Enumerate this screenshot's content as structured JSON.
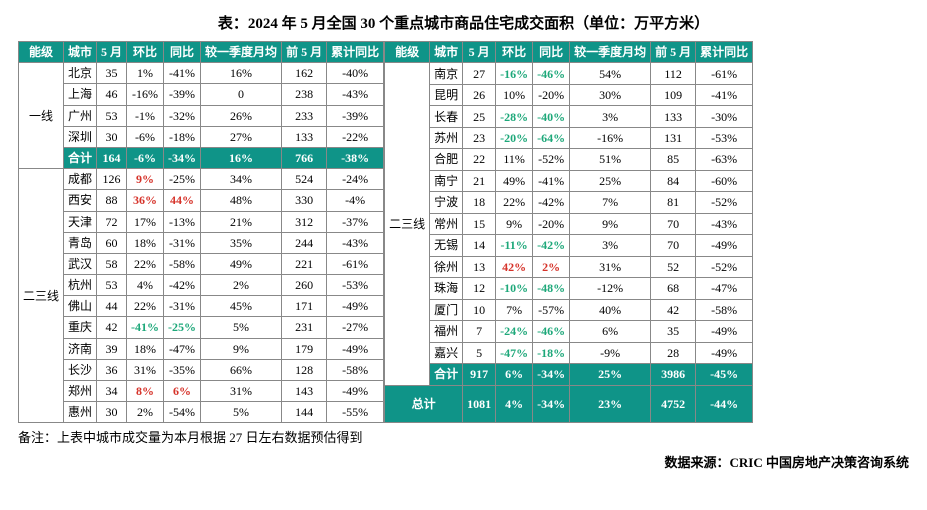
{
  "title": "表：2024 年 5 月全国 30 个重点城市商品住宅成交面积（单位：万平方米）",
  "note": "备注：上表中城市成交量为本月根据 27 日左右数据预估得到",
  "source": "数据来源：CRIC 中国房地产决策咨询系统",
  "headers": {
    "tier": "能级",
    "city": "城市",
    "may": "5 月",
    "mom": "环比",
    "yoy": "同比",
    "vsq1": "较一季度月均",
    "ytd": "前 5 月",
    "ytdyoy": "累计同比"
  },
  "colors": {
    "header_bg": "#0f9488",
    "header_fg": "#ffffff",
    "pos": "#d6332a",
    "neg": "#1ea87a",
    "border": "#888888"
  },
  "left": {
    "tier1_label": "一线",
    "tier1_rows": [
      {
        "city": "北京",
        "may": "35",
        "mom": "1%",
        "yoy": "-41%",
        "vsq1": "16%",
        "ytd": "162",
        "ytdyoy": "-40%"
      },
      {
        "city": "上海",
        "may": "46",
        "mom": "-16%",
        "yoy": "-39%",
        "vsq1": "0",
        "ytd": "238",
        "ytdyoy": "-43%"
      },
      {
        "city": "广州",
        "may": "53",
        "mom": "-1%",
        "yoy": "-32%",
        "vsq1": "26%",
        "ytd": "233",
        "ytdyoy": "-39%"
      },
      {
        "city": "深圳",
        "may": "30",
        "mom": "-6%",
        "yoy": "-18%",
        "vsq1": "27%",
        "ytd": "133",
        "ytdyoy": "-22%"
      }
    ],
    "tier1_subtotal": {
      "city": "合计",
      "may": "164",
      "mom": "-6%",
      "mom_hl": "neg",
      "yoy": "-34%",
      "vsq1": "16%",
      "ytd": "766",
      "ytdyoy": "-38%"
    },
    "tier23_label": "二三线",
    "tier23_rows": [
      {
        "city": "成都",
        "may": "126",
        "mom": "9%",
        "mom_hl": "pos",
        "yoy": "-25%",
        "vsq1": "34%",
        "ytd": "524",
        "ytdyoy": "-24%"
      },
      {
        "city": "西安",
        "may": "88",
        "mom": "36%",
        "mom_hl": "pos",
        "yoy": "44%",
        "yoy_hl": "pos",
        "vsq1": "48%",
        "ytd": "330",
        "ytdyoy": "-4%"
      },
      {
        "city": "天津",
        "may": "72",
        "mom": "17%",
        "yoy": "-13%",
        "vsq1": "21%",
        "ytd": "312",
        "ytdyoy": "-37%"
      },
      {
        "city": "青岛",
        "may": "60",
        "mom": "18%",
        "yoy": "-31%",
        "vsq1": "35%",
        "ytd": "244",
        "ytdyoy": "-43%"
      },
      {
        "city": "武汉",
        "may": "58",
        "mom": "22%",
        "yoy": "-58%",
        "vsq1": "49%",
        "ytd": "221",
        "ytdyoy": "-61%"
      },
      {
        "city": "杭州",
        "may": "53",
        "mom": "4%",
        "yoy": "-42%",
        "vsq1": "2%",
        "ytd": "260",
        "ytdyoy": "-53%"
      },
      {
        "city": "佛山",
        "may": "44",
        "mom": "22%",
        "yoy": "-31%",
        "vsq1": "45%",
        "ytd": "171",
        "ytdyoy": "-49%"
      },
      {
        "city": "重庆",
        "may": "42",
        "mom": "-41%",
        "mom_hl": "neg",
        "yoy": "-25%",
        "yoy_hl": "neg",
        "vsq1": "5%",
        "ytd": "231",
        "ytdyoy": "-27%"
      },
      {
        "city": "济南",
        "may": "39",
        "mom": "18%",
        "yoy": "-47%",
        "vsq1": "9%",
        "ytd": "179",
        "ytdyoy": "-49%"
      },
      {
        "city": "长沙",
        "may": "36",
        "mom": "31%",
        "yoy": "-35%",
        "vsq1": "66%",
        "ytd": "128",
        "ytdyoy": "-58%"
      },
      {
        "city": "郑州",
        "may": "34",
        "mom": "8%",
        "mom_hl": "pos",
        "yoy": "6%",
        "yoy_hl": "pos",
        "vsq1": "31%",
        "ytd": "143",
        "ytdyoy": "-49%"
      },
      {
        "city": "惠州",
        "may": "30",
        "mom": "2%",
        "yoy": "-54%",
        "vsq1": "5%",
        "ytd": "144",
        "ytdyoy": "-55%"
      }
    ]
  },
  "right": {
    "tier23_label": "二三线",
    "tier23_rows": [
      {
        "city": "南京",
        "may": "27",
        "mom": "-16%",
        "mom_hl": "neg",
        "yoy": "-46%",
        "yoy_hl": "neg",
        "vsq1": "54%",
        "ytd": "112",
        "ytdyoy": "-61%"
      },
      {
        "city": "昆明",
        "may": "26",
        "mom": "10%",
        "yoy": "-20%",
        "vsq1": "30%",
        "ytd": "109",
        "ytdyoy": "-41%"
      },
      {
        "city": "长春",
        "may": "25",
        "mom": "-28%",
        "mom_hl": "neg",
        "yoy": "-40%",
        "yoy_hl": "neg",
        "vsq1": "3%",
        "ytd": "133",
        "ytdyoy": "-30%"
      },
      {
        "city": "苏州",
        "may": "23",
        "mom": "-20%",
        "mom_hl": "neg",
        "yoy": "-64%",
        "yoy_hl": "neg",
        "vsq1": "-16%",
        "ytd": "131",
        "ytdyoy": "-53%"
      },
      {
        "city": "合肥",
        "may": "22",
        "mom": "11%",
        "yoy": "-52%",
        "vsq1": "51%",
        "ytd": "85",
        "ytdyoy": "-63%"
      },
      {
        "city": "南宁",
        "may": "21",
        "mom": "49%",
        "yoy": "-41%",
        "vsq1": "25%",
        "ytd": "84",
        "ytdyoy": "-60%"
      },
      {
        "city": "宁波",
        "may": "18",
        "mom": "22%",
        "yoy": "-42%",
        "vsq1": "7%",
        "ytd": "81",
        "ytdyoy": "-52%"
      },
      {
        "city": "常州",
        "may": "15",
        "mom": "9%",
        "yoy": "-20%",
        "vsq1": "9%",
        "ytd": "70",
        "ytdyoy": "-43%"
      },
      {
        "city": "无锡",
        "may": "14",
        "mom": "-11%",
        "mom_hl": "neg",
        "yoy": "-42%",
        "yoy_hl": "neg",
        "vsq1": "3%",
        "ytd": "70",
        "ytdyoy": "-49%"
      },
      {
        "city": "徐州",
        "may": "13",
        "mom": "42%",
        "mom_hl": "pos",
        "yoy": "2%",
        "yoy_hl": "pos",
        "vsq1": "31%",
        "ytd": "52",
        "ytdyoy": "-52%"
      },
      {
        "city": "珠海",
        "may": "12",
        "mom": "-10%",
        "mom_hl": "neg",
        "yoy": "-48%",
        "yoy_hl": "neg",
        "vsq1": "-12%",
        "ytd": "68",
        "ytdyoy": "-47%"
      },
      {
        "city": "厦门",
        "may": "10",
        "mom": "7%",
        "yoy": "-57%",
        "vsq1": "40%",
        "ytd": "42",
        "ytdyoy": "-58%"
      },
      {
        "city": "福州",
        "may": "7",
        "mom": "-24%",
        "mom_hl": "neg",
        "yoy": "-46%",
        "yoy_hl": "neg",
        "vsq1": "6%",
        "ytd": "35",
        "ytdyoy": "-49%"
      },
      {
        "city": "嘉兴",
        "may": "5",
        "mom": "-47%",
        "mom_hl": "neg",
        "yoy": "-18%",
        "yoy_hl": "neg",
        "vsq1": "-9%",
        "ytd": "28",
        "ytdyoy": "-49%"
      }
    ],
    "tier23_subtotal": {
      "city": "合计",
      "may": "917",
      "mom": "6%",
      "yoy": "-34%",
      "vsq1": "25%",
      "ytd": "3986",
      "ytdyoy": "-45%"
    },
    "grand_total": {
      "label": "总计",
      "may": "1081",
      "mom": "4%",
      "yoy": "-34%",
      "vsq1": "23%",
      "ytd": "4752",
      "ytdyoy": "-44%"
    }
  }
}
